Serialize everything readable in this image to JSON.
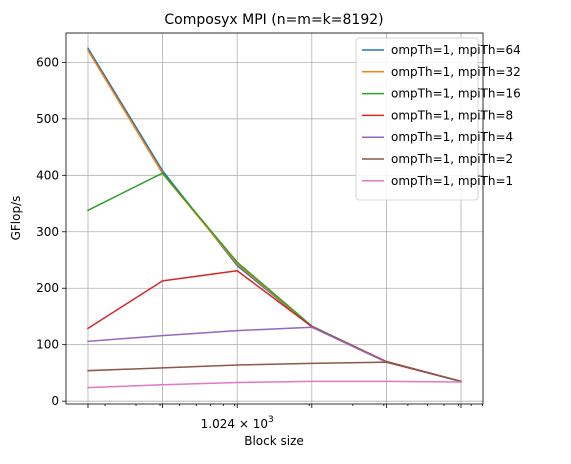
{
  "chart_data": {
    "type": "line",
    "title": "Composyx MPI (n=m=k=8192)",
    "xlabel": "Block size",
    "ylabel": "GFlop/s",
    "x_scale": "log",
    "x": [
      256,
      512,
      1024,
      2048,
      4096,
      8192
    ],
    "x_major_tick_label": {
      "pre": "1.024",
      "mid": " × 10",
      "sup": "3",
      "value": 1024
    },
    "y_ticks": [
      0,
      100,
      200,
      300,
      400,
      500,
      600
    ],
    "ylim": [
      -5,
      652
    ],
    "grid": true,
    "legend_position": "upper right",
    "series": [
      {
        "name": "ompTh=1, mpiTh=64",
        "color": "#1f77b4",
        "values": [
          625,
          408,
          240,
          132,
          70,
          35
        ]
      },
      {
        "name": "ompTh=1, mpiTh=32",
        "color": "#ff7f0e",
        "values": [
          621,
          403,
          243,
          132,
          70,
          35
        ]
      },
      {
        "name": "ompTh=1, mpiTh=16",
        "color": "#2ca02c",
        "values": [
          338,
          404,
          246,
          133,
          70,
          35
        ]
      },
      {
        "name": "ompTh=1, mpiTh=8",
        "color": "#d62728",
        "values": [
          129,
          213,
          231,
          132,
          70,
          35
        ]
      },
      {
        "name": "ompTh=1, mpiTh=4",
        "color": "#9467bd",
        "values": [
          106,
          116,
          125,
          131,
          69,
          35
        ]
      },
      {
        "name": "ompTh=1, mpiTh=2",
        "color": "#8c564b",
        "values": [
          54,
          59,
          64,
          67,
          69,
          35
        ]
      },
      {
        "name": "ompTh=1, mpiTh=1",
        "color": "#e377c2",
        "values": [
          24,
          29,
          33,
          35,
          35,
          34
        ]
      }
    ]
  }
}
